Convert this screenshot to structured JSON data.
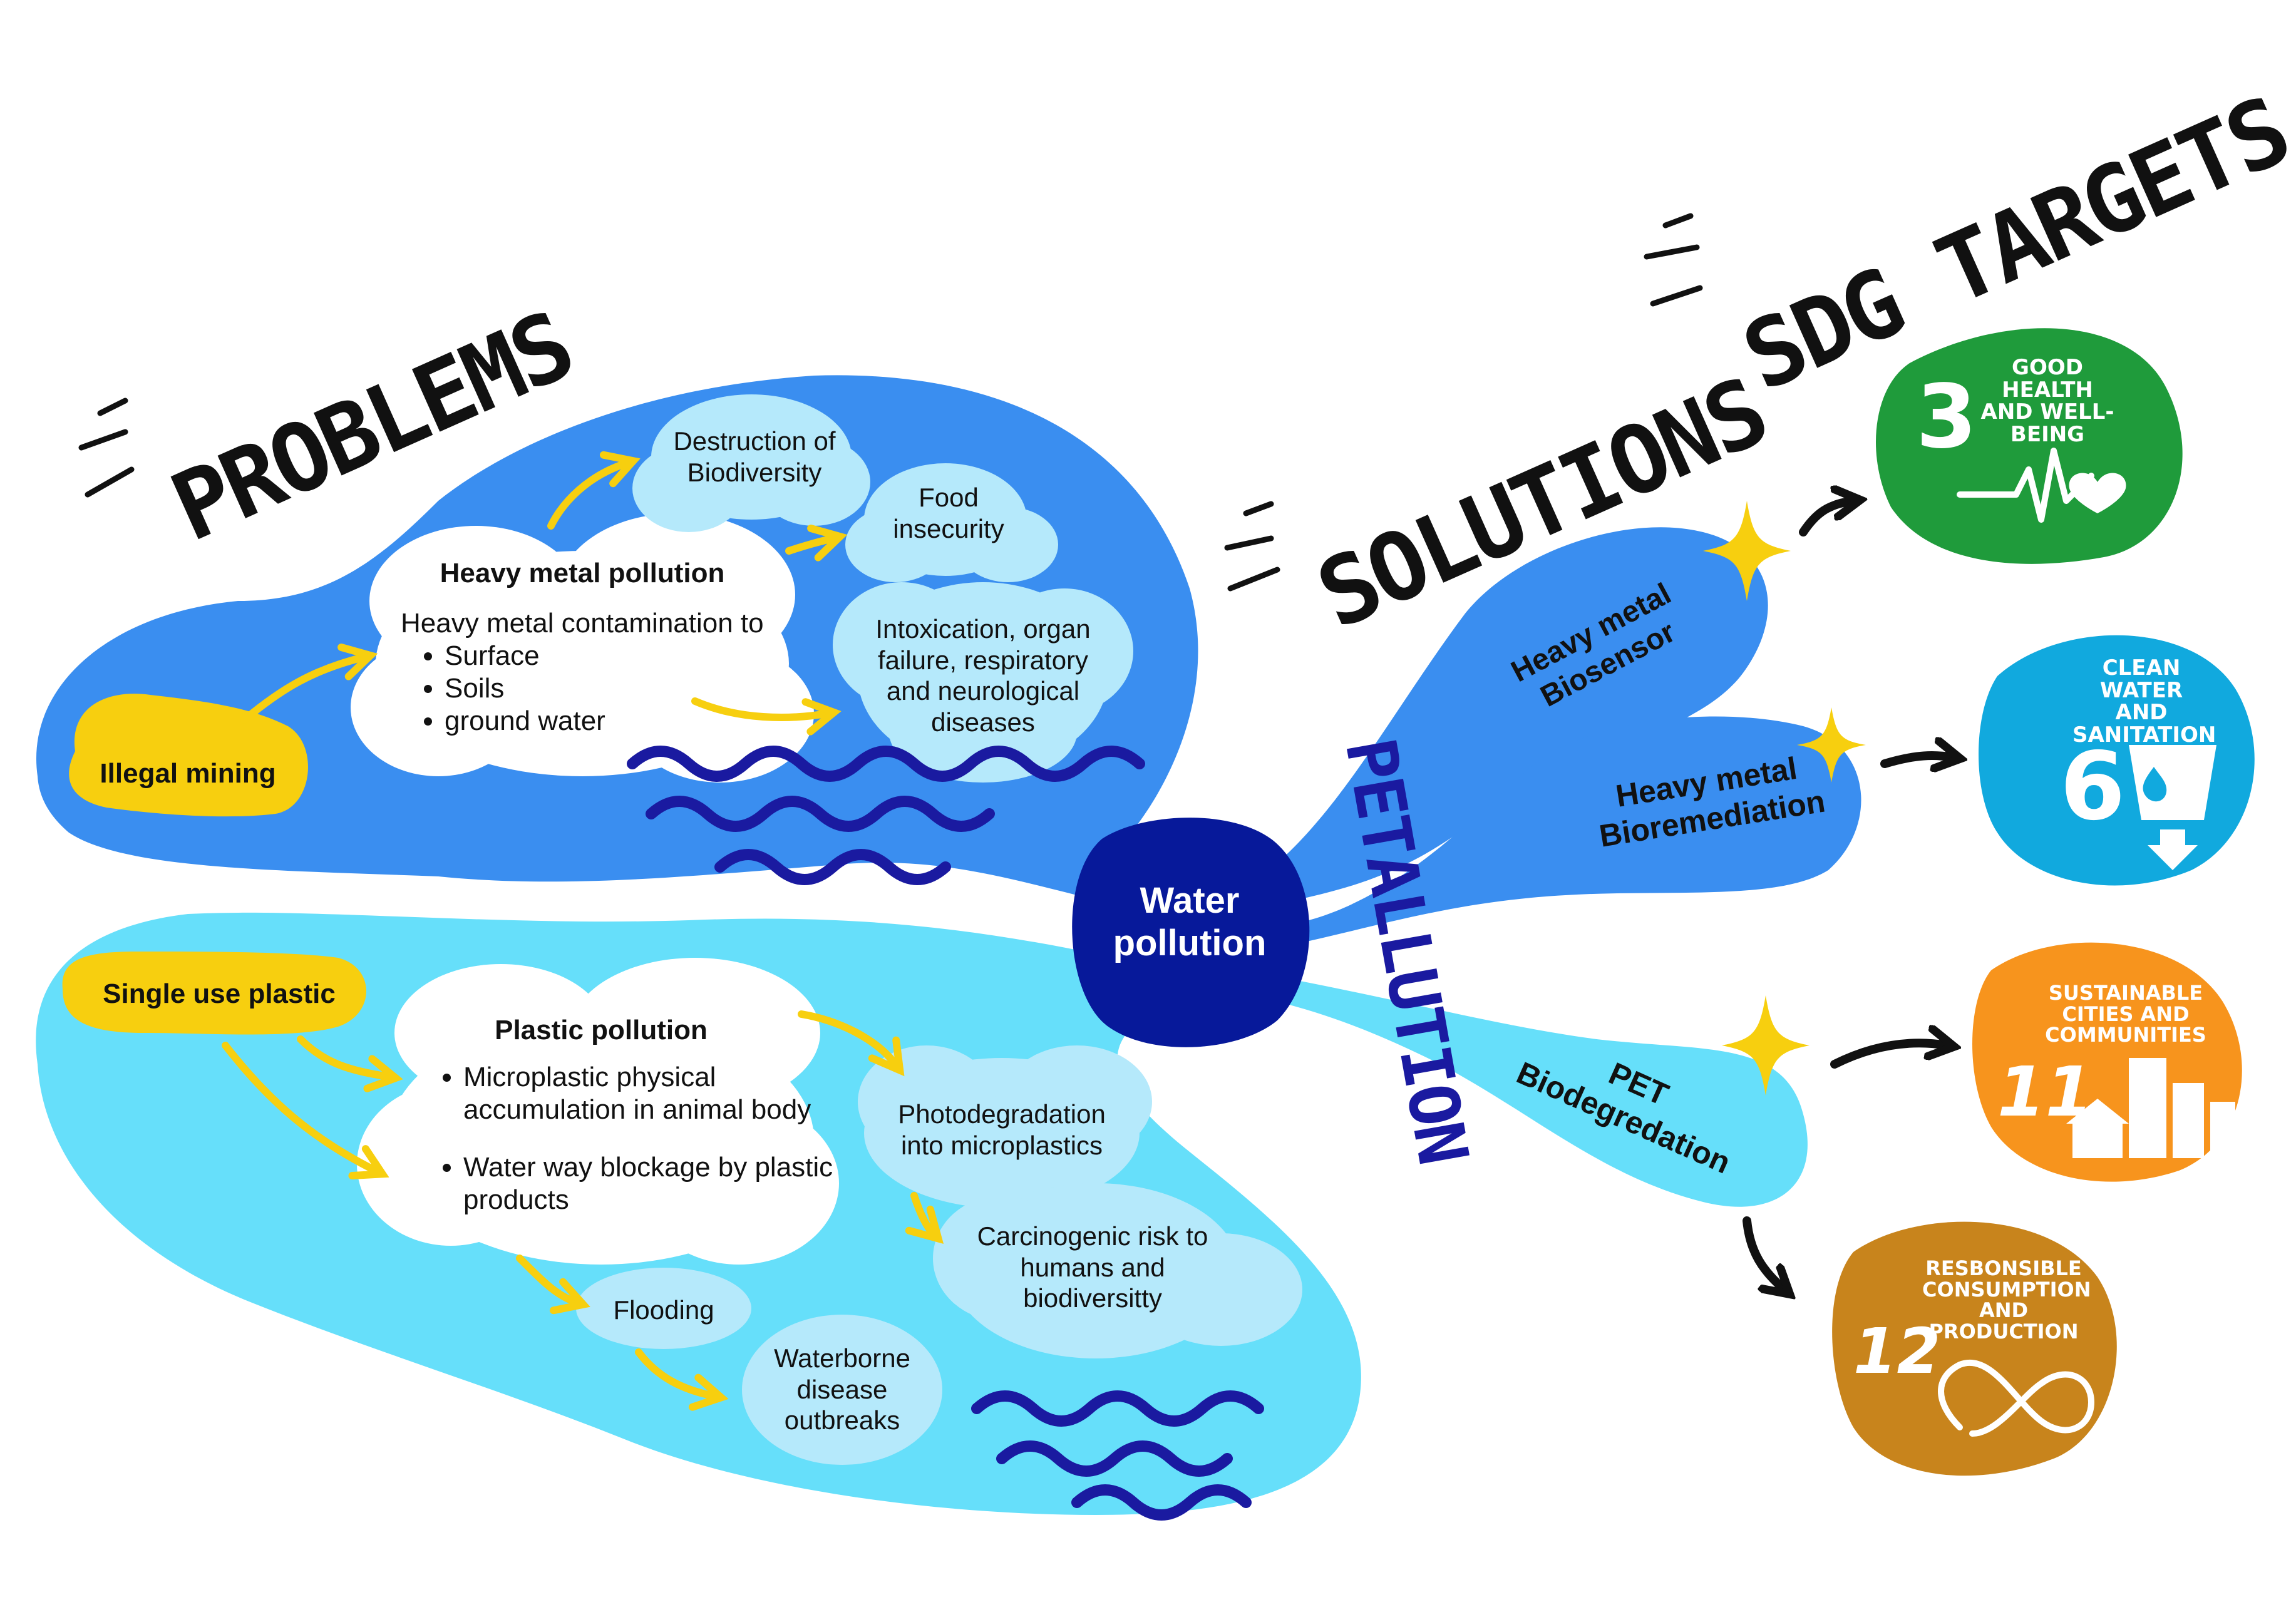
{
  "headings": {
    "problems": "PROBLEMS",
    "solutions": "SOLUTIONS",
    "sdg_targets": "SDG TARGETS",
    "petallution": "PETALLUTION"
  },
  "center": {
    "label": "Water pollution"
  },
  "problems_heavy_metal": {
    "source": "Illegal mining",
    "title": "Heavy metal pollution",
    "intro": "Heavy metal contamination to",
    "bullets": [
      "Surface",
      "Soils",
      "ground water"
    ],
    "effects": [
      "Destruction of Biodiversity",
      "Food insecurity",
      "Intoxication, organ failure, respiratory and neurological diseases"
    ]
  },
  "problems_plastic": {
    "source": "Single use plastic",
    "title": "Plastic pollution",
    "bullets": [
      "Microplastic physical accumulation in animal body",
      "Water way blockage by plastic products"
    ],
    "effects": [
      "Photodegradation into microplastics",
      "Carcinogenic risk to humans and biodiversitty",
      "Flooding",
      "Waterborne disease outbreaks"
    ]
  },
  "solutions": [
    "Heavy metal Biosensor",
    "Heavy metal Bioremediation",
    "PET Biodegredation"
  ],
  "sdgs": [
    {
      "number": "3",
      "title": "GOOD HEALTH AND WELL-BEING",
      "color": "#1f9b3b",
      "icon": "heartbeat-icon"
    },
    {
      "number": "6",
      "title": "CLEAN WATER AND SANITATION",
      "color": "#11a9de",
      "icon": "water-glass-icon"
    },
    {
      "number": "11",
      "title": "SUSTAINABLE CITIES AND COMMUNITIES",
      "color": "#f7941d",
      "icon": "city-icon"
    },
    {
      "number": "12",
      "title": "RESBONSIBLE CONSUMPTION AND PRODUCTION",
      "color": "#c8841c",
      "icon": "infinity-icon"
    }
  ],
  "colors": {
    "dark_blue": "#3a8ef0",
    "light_blue": "#66dffa",
    "center_navy": "#07199a",
    "yellow": "#f7cf0f",
    "wave": "#1a1aa0",
    "cloud_blue": "#b5e9fb"
  }
}
